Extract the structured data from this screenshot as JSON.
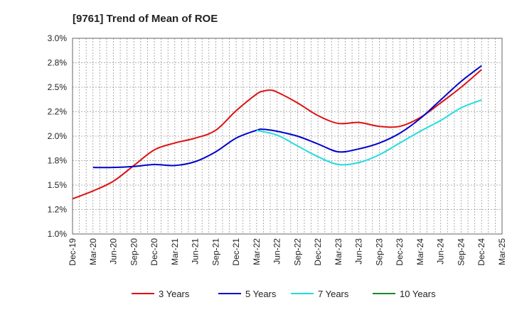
{
  "chart_data": {
    "type": "line",
    "title": "[9761]  Trend of Mean of ROE",
    "xlabel": "",
    "ylabel": "",
    "y_ticks": [
      "1.0%",
      "1.2%",
      "1.5%",
      "1.8%",
      "2.0%",
      "2.2%",
      "2.5%",
      "2.8%",
      "3.0%"
    ],
    "ylim": [
      1.0,
      3.0
    ],
    "x_ticks": [
      "Dec-19",
      "Mar-20",
      "Jun-20",
      "Sep-20",
      "Dec-20",
      "Mar-21",
      "Jun-21",
      "Sep-21",
      "Dec-21",
      "Mar-22",
      "Jun-22",
      "Sep-22",
      "Dec-22",
      "Mar-23",
      "Jun-23",
      "Sep-23",
      "Dec-23",
      "Mar-24",
      "Jun-24",
      "Sep-24",
      "Dec-24",
      "Mar-25"
    ],
    "grid": true,
    "legend_position": "bottom",
    "series": [
      {
        "name": "3 Years",
        "color": "#dd1111",
        "x": [
          "Dec-19",
          "Mar-20",
          "Jun-20",
          "Sep-20",
          "Dec-20",
          "Mar-21",
          "Jun-21",
          "Sep-21",
          "Dec-21",
          "Mar-22",
          "Apr-22",
          "May-22",
          "Jun-22",
          "Sep-22",
          "Dec-22",
          "Mar-23",
          "Jun-23",
          "Sep-23",
          "Dec-23",
          "Mar-24",
          "Jun-24",
          "Sep-24",
          "Dec-24"
        ],
        "values": [
          1.36,
          1.44,
          1.54,
          1.7,
          1.86,
          1.93,
          1.98,
          2.06,
          2.26,
          2.43,
          2.46,
          2.47,
          2.45,
          2.34,
          2.21,
          2.13,
          2.14,
          2.1,
          2.1,
          2.19,
          2.34,
          2.5,
          2.68
        ]
      },
      {
        "name": "5 Years",
        "color": "#0000cc",
        "x": [
          "Mar-20",
          "Jun-20",
          "Sep-20",
          "Dec-20",
          "Mar-21",
          "Jun-21",
          "Sep-21",
          "Dec-21",
          "Mar-22",
          "Apr-22",
          "Jun-22",
          "Sep-22",
          "Dec-22",
          "Mar-23",
          "Jun-23",
          "Sep-23",
          "Dec-23",
          "Mar-24",
          "Jun-24",
          "Sep-24",
          "Dec-24"
        ],
        "values": [
          1.68,
          1.68,
          1.69,
          1.71,
          1.7,
          1.74,
          1.84,
          1.98,
          2.06,
          2.07,
          2.05,
          2.0,
          1.92,
          1.84,
          1.87,
          1.93,
          2.03,
          2.18,
          2.37,
          2.56,
          2.72
        ]
      },
      {
        "name": "7 Years",
        "color": "#22dddd",
        "x": [
          "Mar-22",
          "Jun-22",
          "Sep-22",
          "Dec-22",
          "Mar-23",
          "Jun-23",
          "Sep-23",
          "Dec-23",
          "Mar-24",
          "Jun-24",
          "Sep-24",
          "Dec-24"
        ],
        "values": [
          2.06,
          2.01,
          1.9,
          1.79,
          1.71,
          1.73,
          1.81,
          1.93,
          2.05,
          2.16,
          2.29,
          2.37
        ]
      },
      {
        "name": "10 Years",
        "color": "#228822",
        "x": [],
        "values": []
      }
    ]
  }
}
